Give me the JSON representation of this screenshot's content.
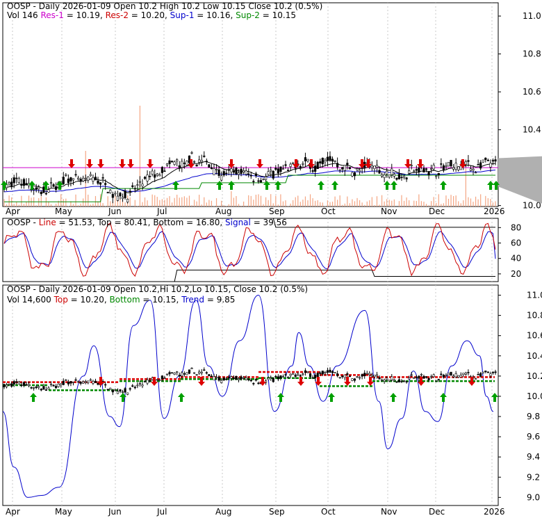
{
  "chart_data": [
    {
      "type": "candlestick",
      "panel": "price",
      "header_line1": [
        "OOSP - Daily 2026-01-09 Open 10.2  High 10.2  Low 10.15  Close 10.2 (0.5%)"
      ],
      "header_line2": [
        {
          "text": "Vol 146 ",
          "color": "#000000"
        },
        {
          "text": "Res-1",
          "color": "#cc00cc"
        },
        {
          "text": " = 10.19, ",
          "color": "#000000"
        },
        {
          "text": "Res-2",
          "color": "#cc0000"
        },
        {
          "text": " = 10.20, ",
          "color": "#000000"
        },
        {
          "text": "Sup-1",
          "color": "#0000cc"
        },
        {
          "text": " = 10.16, ",
          "color": "#000000"
        },
        {
          "text": "Sup-2",
          "color": "#008800"
        },
        {
          "text": " = 10.15",
          "color": "#000000"
        }
      ],
      "yticks": [
        "11.0",
        "10.8",
        "10.6",
        "10.4",
        "10.2",
        "10.0"
      ],
      "ylim": [
        9.995,
        11.07
      ],
      "xticks": [
        "Apr",
        "May",
        "Jun",
        "Jul",
        "Aug",
        "Sep",
        "Oct",
        "Nov",
        "Dec",
        "2026"
      ],
      "ohlc_approx": {
        "start": 10.13,
        "end": 10.2,
        "range_low": 10.02,
        "range_high": 10.28
      },
      "levels": {
        "res1": 10.19,
        "res2": 10.2,
        "sup1": 10.16,
        "sup2": 10.15
      },
      "volume_spikes": [
        {
          "month_index": 1,
          "relative": 0.42
        },
        {
          "month_index": 2.1,
          "relative": 1.0
        },
        {
          "month_index": 6.2,
          "relative": 0.15
        },
        {
          "month_index": 8.9,
          "relative": 0.3
        }
      ],
      "close_label": "10.2",
      "colors": {
        "candle": "#000000",
        "volume": "#f4a582",
        "res1": "#cc00cc",
        "res2": "#cc0000",
        "sup1": "#0000cc",
        "sup2": "#008800",
        "band": "#b0b0b0",
        "up_arrow": "#00a000",
        "down_arrow": "#dd0000"
      }
    },
    {
      "type": "line",
      "panel": "stochastic",
      "header": [
        {
          "text": "OOSP - ",
          "color": "#000000"
        },
        {
          "text": "Line",
          "color": "#cc0000"
        },
        {
          "text": " = 51.53, ",
          "color": "#000000"
        },
        {
          "text": "Top",
          "color": "#000000"
        },
        {
          "text": " = 80.41, ",
          "color": "#000000"
        },
        {
          "text": "Bottom",
          "color": "#000000"
        },
        {
          "text": " = 16.80, ",
          "color": "#000000"
        },
        {
          "text": "Signal",
          "color": "#0000cc"
        },
        {
          "text": " = 39.56",
          "color": "#000000"
        }
      ],
      "yticks": [
        "80",
        "60",
        "40",
        "20"
      ],
      "ylim": [
        10,
        92
      ],
      "series": [
        {
          "name": "Line",
          "last": 51.53,
          "color": "#cc0000"
        },
        {
          "name": "Signal",
          "last": 39.56,
          "color": "#0000cc"
        }
      ],
      "top": 80.41,
      "bottom": 16.8
    },
    {
      "type": "candlestick",
      "panel": "trend",
      "header_line1": [
        "OOSP - Daily 2026-01-09 Open 10.2,Hi 10.2,Lo 10.15, Close 10.2 (0.5%)"
      ],
      "header_line2": [
        {
          "text": "Vol 14,600 ",
          "color": "#000000"
        },
        {
          "text": "Top",
          "color": "#cc0000"
        },
        {
          "text": " = 10.20, ",
          "color": "#000000"
        },
        {
          "text": "Bottom",
          "color": "#008800"
        },
        {
          "text": " = 10.15, ",
          "color": "#000000"
        },
        {
          "text": "Trend",
          "color": "#0000cc"
        },
        {
          "text": " = 9.85",
          "color": "#000000"
        }
      ],
      "yticks": [
        "11.0",
        "10.8",
        "10.6",
        "10.4",
        "10.2",
        "10.0",
        "9.8",
        "9.6",
        "9.4",
        "9.2",
        "9.0"
      ],
      "ylim": [
        8.92,
        11.1
      ],
      "xticks": [
        "Apr",
        "May",
        "Jun",
        "Jul",
        "Aug",
        "Sep",
        "Oct",
        "Nov",
        "Dec",
        "2026"
      ],
      "trend_last": 9.85,
      "top": 10.2,
      "bottom": 10.15,
      "colors": {
        "trend": "#0000cc",
        "top": "#dd0000",
        "bottom": "#008800"
      }
    }
  ]
}
